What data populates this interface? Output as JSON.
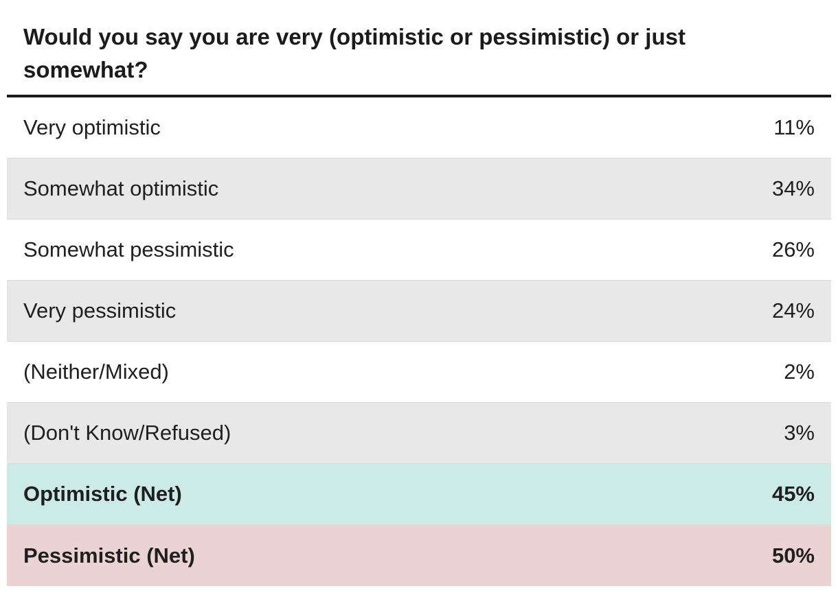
{
  "chart_data": {
    "type": "table",
    "title": "Would you say you are very (optimistic or pessimistic) or just somewhat?",
    "rows": [
      {
        "label": "Very optimistic",
        "value": "11%",
        "style": "plain"
      },
      {
        "label": "Somewhat optimistic",
        "value": "34%",
        "style": "shade"
      },
      {
        "label": "Somewhat pessimistic",
        "value": "26%",
        "style": "plain"
      },
      {
        "label": "Very pessimistic",
        "value": "24%",
        "style": "shade"
      },
      {
        "label": "(Neither/Mixed)",
        "value": "2%",
        "style": "plain"
      },
      {
        "label": "(Don't Know/Refused)",
        "value": "3%",
        "style": "shade"
      },
      {
        "label": "Optimistic (Net)",
        "value": "45%",
        "style": "net-opt"
      },
      {
        "label": "Pessimistic (Net)",
        "value": "50%",
        "style": "net-pes"
      }
    ],
    "colors": {
      "shade_row": "#e8e8e8",
      "optimistic_net": "#cdebe6",
      "pessimistic_net": "#ecd3d3",
      "header_rule": "#1a1a1a"
    }
  }
}
